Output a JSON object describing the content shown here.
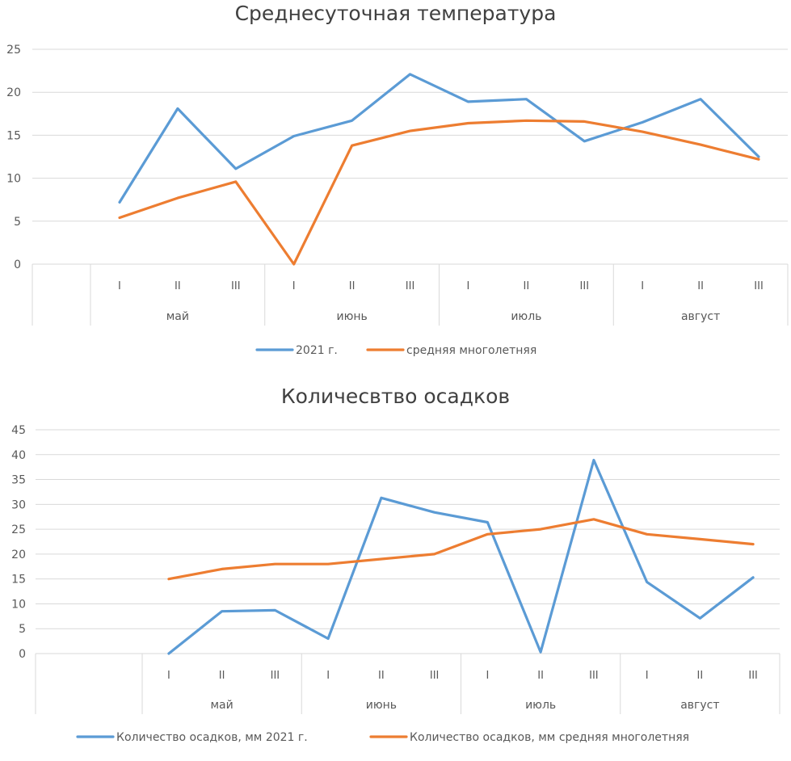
{
  "chart_data": [
    {
      "type": "line",
      "title": "Среднесуточная температура",
      "xlabel": "",
      "ylabel": "",
      "ylim": [
        0,
        25
      ],
      "yticks": [
        0,
        5,
        10,
        15,
        20,
        25
      ],
      "grid": true,
      "legend": "bottom",
      "categories": [
        "I",
        "II",
        "III",
        "I",
        "II",
        "III",
        "I",
        "II",
        "III",
        "I",
        "II",
        "III"
      ],
      "groups": [
        "май",
        "июнь",
        "июль",
        "август"
      ],
      "series": [
        {
          "name": "2021 г.",
          "color": "#5B9BD5",
          "values": [
            7.2,
            18.1,
            11.1,
            14.9,
            16.7,
            22.1,
            18.9,
            19.2,
            14.3,
            16.5,
            19.2,
            12.5
          ]
        },
        {
          "name": "средняя многолетняя",
          "color": "#ED7D31",
          "values": [
            5.4,
            7.7,
            9.6,
            0,
            13.8,
            15.5,
            16.4,
            16.7,
            16.6,
            15.4,
            13.9,
            12.2
          ]
        }
      ]
    },
    {
      "type": "line",
      "title": "Количесвтво осадков",
      "xlabel": "",
      "ylabel": "",
      "ylim": [
        0,
        45
      ],
      "yticks": [
        0,
        5,
        10,
        15,
        20,
        25,
        30,
        35,
        40,
        45
      ],
      "grid": true,
      "legend": "bottom",
      "categories": [
        "I",
        "II",
        "III",
        "I",
        "II",
        "III",
        "I",
        "II",
        "III",
        "I",
        "II",
        "III"
      ],
      "groups": [
        "май",
        "июнь",
        "июль",
        "август"
      ],
      "series": [
        {
          "name": "Количество осадков, мм 2021 г.",
          "color": "#5B9BD5",
          "values": [
            0,
            8.5,
            8.7,
            3,
            31.3,
            28.4,
            26.4,
            0.3,
            38.9,
            14.4,
            7.1,
            15.3
          ]
        },
        {
          "name": "Количество осадков, мм средняя многолетняя",
          "color": "#ED7D31",
          "values": [
            15,
            17,
            18,
            18,
            19,
            20,
            24,
            25,
            27,
            24,
            23,
            22
          ]
        }
      ]
    }
  ]
}
